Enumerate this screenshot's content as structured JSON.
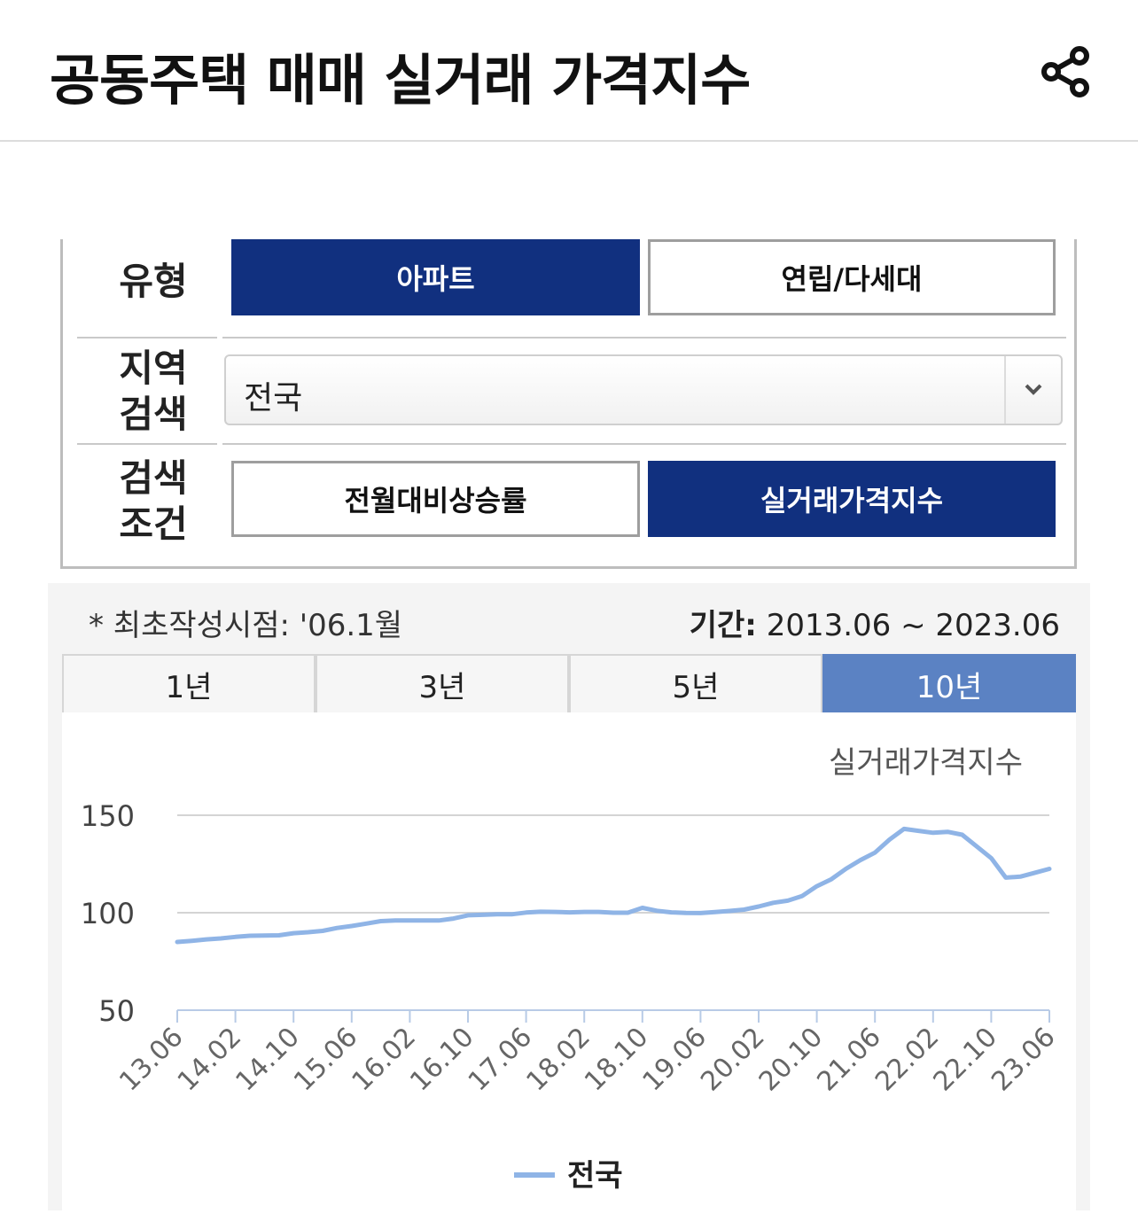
{
  "header": {
    "title": "공동주택 매매 실거래 가격지수",
    "share_icon": "share-icon"
  },
  "filters": {
    "type": {
      "label": "유형",
      "options": [
        "아파트",
        "연립/다세대"
      ],
      "selected": "아파트"
    },
    "region": {
      "label_line1": "지역",
      "label_line2": "검색",
      "value": "전국"
    },
    "condition": {
      "label_line1": "검색",
      "label_line2": "조건",
      "options": [
        "전월대비상승률",
        "실거래가격지수"
      ],
      "selected": "실거래가격지수"
    }
  },
  "info": {
    "note": "* 최초작성시점: '06.1월",
    "period_label": "기간:",
    "period_value": "2013.06 ~ 2023.06"
  },
  "tabs": [
    {
      "label": "1년"
    },
    {
      "label": "3년"
    },
    {
      "label": "5년"
    },
    {
      "label": "10년"
    }
  ],
  "active_tab": "10년",
  "colors": {
    "primary": "#11307f",
    "tab_active": "#5b82c3",
    "line": "#8fb4e6"
  },
  "chart_data": {
    "type": "line",
    "title": "실거래가격지수",
    "xlabel": "",
    "ylabel": "",
    "ylim": [
      50,
      150
    ],
    "yticks": [
      150,
      100,
      50
    ],
    "xticks": [
      "13.06",
      "14.02",
      "14.10",
      "15.06",
      "16.02",
      "16.10",
      "17.06",
      "18.02",
      "18.10",
      "19.06",
      "20.02",
      "20.10",
      "21.06",
      "22.02",
      "22.10",
      "23.06"
    ],
    "grid": true,
    "legend_position": "bottom",
    "series": [
      {
        "name": "전국",
        "x": [
          "13.06",
          "13.08",
          "13.10",
          "13.12",
          "14.02",
          "14.04",
          "14.06",
          "14.08",
          "14.10",
          "14.12",
          "15.02",
          "15.04",
          "15.06",
          "15.08",
          "15.10",
          "15.12",
          "16.02",
          "16.04",
          "16.06",
          "16.08",
          "16.10",
          "16.12",
          "17.02",
          "17.04",
          "17.06",
          "17.08",
          "17.10",
          "17.12",
          "18.02",
          "18.04",
          "18.06",
          "18.08",
          "18.10",
          "18.12",
          "19.02",
          "19.04",
          "19.06",
          "19.08",
          "19.10",
          "19.12",
          "20.02",
          "20.04",
          "20.06",
          "20.08",
          "20.10",
          "20.12",
          "21.02",
          "21.04",
          "21.06",
          "21.08",
          "21.10",
          "21.12",
          "22.02",
          "22.04",
          "22.06",
          "22.08",
          "22.10",
          "22.12",
          "23.02",
          "23.04",
          "23.06"
        ],
        "values": [
          85.0,
          85.6,
          86.3,
          86.8,
          87.6,
          88.2,
          88.3,
          88.4,
          89.5,
          90.0,
          90.7,
          92.2,
          93.2,
          94.4,
          95.7,
          96.0,
          96.0,
          96.0,
          96.0,
          97.0,
          98.7,
          98.9,
          99.2,
          99.2,
          100.1,
          100.5,
          100.4,
          100.2,
          100.4,
          100.4,
          100.0,
          100.0,
          102.5,
          101.0,
          100.2,
          99.9,
          99.8,
          100.3,
          100.9,
          101.6,
          103.2,
          105.1,
          106.2,
          108.6,
          113.6,
          117.2,
          122.5,
          127.0,
          130.8,
          137.5,
          143.0,
          142.0,
          141.0,
          141.5,
          140.0,
          134.0,
          128.0,
          118.0,
          118.5,
          120.5,
          122.5
        ]
      }
    ]
  }
}
